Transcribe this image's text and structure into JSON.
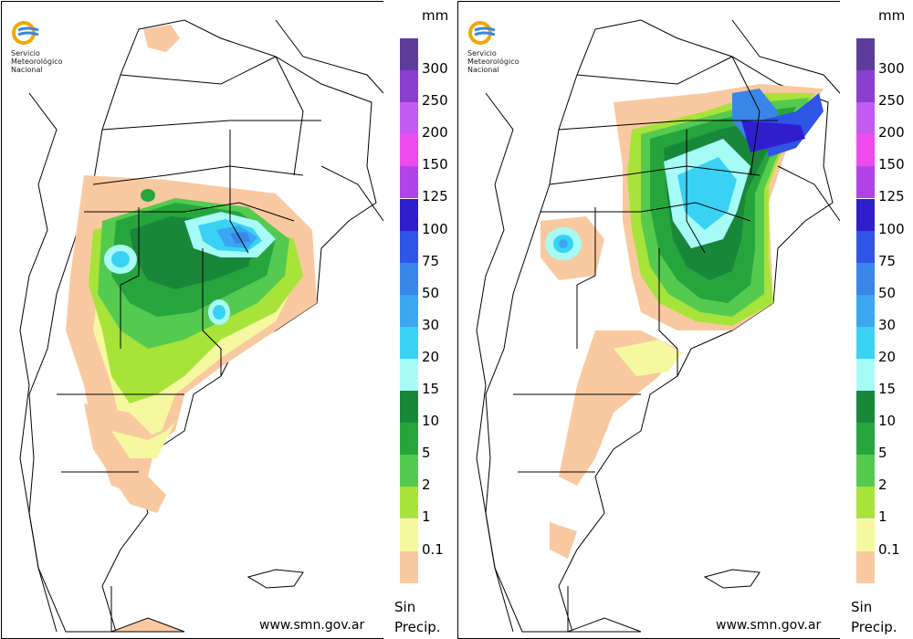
{
  "maps": [
    {
      "id": "left",
      "logo": {
        "line1": "Servicio",
        "line2": "Meteorológico",
        "line3": "Nacional"
      },
      "website": "www.smn.gov.ar"
    },
    {
      "id": "right",
      "logo": {
        "line1": "Servicio",
        "line2": "Meteorológico",
        "line3": "Nacional"
      },
      "website": "www.smn.gov.ar"
    }
  ],
  "legend": {
    "unit": "mm",
    "no_data_line1": "Sin",
    "no_data_line2": "Precip.",
    "levels": [
      {
        "label": "300",
        "color": "#5e3c99"
      },
      {
        "label": "250",
        "color": "#8a3fcf"
      },
      {
        "label": "200",
        "color": "#c35bf0"
      },
      {
        "label": "150",
        "color": "#ee4bee"
      },
      {
        "label": "125",
        "color": "#b243e8"
      },
      {
        "label": "100",
        "color": "#2f1ecc"
      },
      {
        "label": "75",
        "color": "#2e55e6"
      },
      {
        "label": "50",
        "color": "#3a86e8"
      },
      {
        "label": "30",
        "color": "#3aa7f0"
      },
      {
        "label": "20",
        "color": "#39d2f5"
      },
      {
        "label": "15",
        "color": "#a7fbf6"
      },
      {
        "label": "10",
        "color": "#19873a"
      },
      {
        "label": "5",
        "color": "#27a53d"
      },
      {
        "label": "2",
        "color": "#55ca50"
      },
      {
        "label": "1",
        "color": "#a8e33a"
      },
      {
        "label": "0.1",
        "color": "#f6f8a0"
      },
      {
        "label": "",
        "color": "#f8c9a0"
      }
    ]
  }
}
